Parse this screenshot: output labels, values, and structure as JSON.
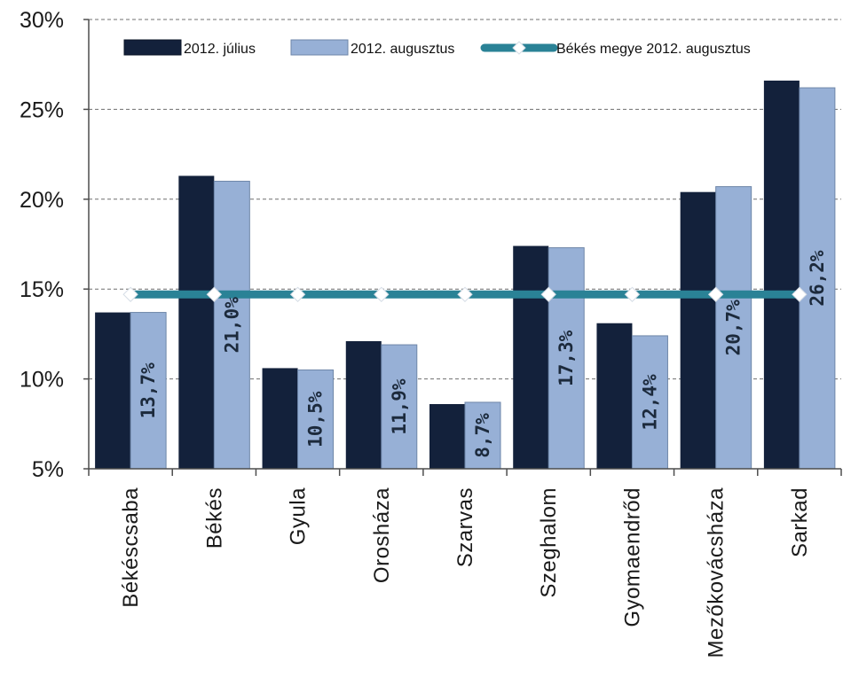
{
  "chart_data": {
    "type": "bar",
    "title": "",
    "xlabel": "",
    "ylabel": "",
    "ylim": [
      5,
      30
    ],
    "y_ticks": [
      5,
      10,
      15,
      20,
      25,
      30
    ],
    "y_tick_labels": [
      "5%",
      "10%",
      "15%",
      "20%",
      "25%",
      "30%"
    ],
    "grid": "horizontal dashed",
    "legend_position": "top",
    "categories": [
      "Békéscsaba",
      "Békés",
      "Gyula",
      "Orosháza",
      "Szarvas",
      "Szeghalom",
      "Gyomaendrőd",
      "Mezőkovácsháza",
      "Sarkad"
    ],
    "series": [
      {
        "name": "2012. július",
        "kind": "bar",
        "color": "#13213b",
        "values": [
          13.7,
          21.3,
          10.6,
          12.1,
          8.6,
          17.4,
          13.1,
          20.4,
          26.6
        ]
      },
      {
        "name": "2012. augusztus",
        "kind": "bar",
        "color": "#97b0d6",
        "values": [
          13.7,
          21.0,
          10.5,
          11.9,
          8.7,
          17.3,
          12.4,
          20.7,
          26.2
        ],
        "data_labels": [
          "13,7%",
          "21,0%",
          "10,5%",
          "11,9%",
          "8,7%",
          "17,3%",
          "12,4%",
          "20,7%",
          "26,2%"
        ]
      },
      {
        "name": "Békés megye 2012. augusztus",
        "kind": "line",
        "color": "#2a8296",
        "marker_color": "#ffffff",
        "values": [
          14.7,
          14.7,
          14.7,
          14.7,
          14.7,
          14.7,
          14.7,
          14.7,
          14.7
        ]
      }
    ]
  }
}
